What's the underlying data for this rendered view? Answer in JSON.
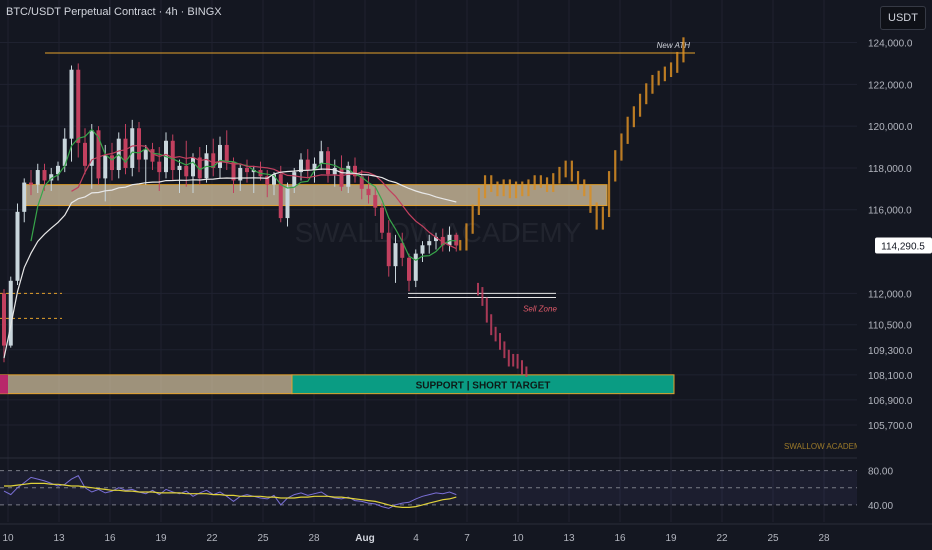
{
  "header": {
    "title": "BTC/USDT Perpetual Contract · 4h · BINGX"
  },
  "currency_button": {
    "label": "USDT"
  },
  "colors": {
    "background": "#141721",
    "bull": "#c9d6dc",
    "bear": "#c2405f",
    "projection": "#d98e23",
    "resistance_zone": "#d9c7a3",
    "support_zone": "#d9c7a3",
    "target_zone": "#0a9c83",
    "ath_line": "#e3a12b",
    "ma_fast": "#37a54a",
    "ma_mid": "#c2405f",
    "ma_slow": "#e8e8e8",
    "rsi_line": "#7a6fd6",
    "rsi_signal": "#e0d23a"
  },
  "chart_data": {
    "type": "candlestick",
    "timeframe": "4h",
    "ylim": [
      104600,
      124600
    ],
    "y_ticks": [
      "124,000.0",
      "122,000.0",
      "120,000.0",
      "118,000.0",
      "116,000.0",
      "112,000.0",
      "110,500.0",
      "109,300.0",
      "108,100.0",
      "106,900.0",
      "105,700.0"
    ],
    "x_ticks": [
      "10",
      "13",
      "16",
      "19",
      "22",
      "25",
      "28",
      "Aug",
      "4",
      "7",
      "10",
      "13",
      "16",
      "19",
      "22",
      "25",
      "28"
    ],
    "current_price": {
      "label": "114,290.5",
      "value": 114290.5
    },
    "annotations": {
      "new_ath": "New ATH",
      "sell_zone": "Sell Zone",
      "support_label": "SUPPORT | SHORT TARGET",
      "watermark": "SWALLOW ACADEMY",
      "brand": "SWALLOW ACADEMY"
    },
    "levels": {
      "ath": 123500,
      "resistance_zone": [
        116200,
        117200
      ],
      "sell_zone_lines": [
        112000,
        111800
      ],
      "support_zone": [
        107200,
        108100
      ],
      "dashed_left": [
        112000,
        110800
      ]
    },
    "ohlc": [
      [
        112000,
        112200,
        108700,
        109500
      ],
      [
        109500,
        112800,
        109400,
        112600
      ],
      [
        112600,
        116300,
        112400,
        115900
      ],
      [
        115900,
        117500,
        115400,
        117300
      ],
      [
        117300,
        117900,
        116700,
        117200
      ],
      [
        117200,
        118200,
        116800,
        117900
      ],
      [
        117900,
        118200,
        116900,
        117400
      ],
      [
        117400,
        118000,
        116900,
        117700
      ],
      [
        117700,
        118300,
        117400,
        118100
      ],
      [
        118100,
        119900,
        117800,
        119400
      ],
      [
        119400,
        122900,
        118300,
        122700
      ],
      [
        122700,
        123000,
        118500,
        119200
      ],
      [
        119200,
        119900,
        117700,
        118100
      ],
      [
        118100,
        120100,
        117000,
        119800
      ],
      [
        119800,
        120000,
        117200,
        117500
      ],
      [
        117500,
        119100,
        116400,
        118600
      ],
      [
        118600,
        119200,
        117400,
        117900
      ],
      [
        117900,
        119700,
        117500,
        119400
      ],
      [
        119400,
        120100,
        117700,
        118000
      ],
      [
        118000,
        120300,
        117600,
        119900
      ],
      [
        119900,
        120200,
        117800,
        118400
      ],
      [
        118400,
        119100,
        117200,
        118900
      ],
      [
        118900,
        119200,
        117900,
        118300
      ],
      [
        118300,
        119000,
        116900,
        117800
      ],
      [
        117800,
        119700,
        117500,
        119300
      ],
      [
        119300,
        119600,
        117400,
        117900
      ],
      [
        117900,
        118400,
        116800,
        118100
      ],
      [
        118100,
        119300,
        117100,
        117600
      ],
      [
        117600,
        118700,
        116800,
        118500
      ],
      [
        118500,
        119000,
        117200,
        117500
      ],
      [
        117500,
        119100,
        117300,
        118700
      ],
      [
        118700,
        119400,
        117600,
        118000
      ],
      [
        118000,
        119500,
        117500,
        119100
      ],
      [
        119100,
        119800,
        117900,
        118300
      ],
      [
        118300,
        118500,
        116800,
        117400
      ],
      [
        117400,
        118200,
        116900,
        118000
      ],
      [
        118000,
        118400,
        117300,
        117800
      ],
      [
        117800,
        118100,
        116800,
        117900
      ],
      [
        117900,
        118300,
        117400,
        117600
      ],
      [
        117600,
        117900,
        116600,
        117200
      ],
      [
        117200,
        117800,
        116700,
        117700
      ],
      [
        117700,
        118100,
        115400,
        115600
      ],
      [
        115600,
        117300,
        115200,
        117100
      ],
      [
        117100,
        118000,
        116800,
        117800
      ],
      [
        117800,
        118700,
        117400,
        118400
      ],
      [
        118400,
        118900,
        117500,
        117900
      ],
      [
        117900,
        118500,
        117300,
        118200
      ],
      [
        118200,
        119300,
        117900,
        118800
      ],
      [
        118800,
        119000,
        117300,
        117700
      ],
      [
        117700,
        118400,
        117100,
        118000
      ],
      [
        118000,
        118600,
        116900,
        117100
      ],
      [
        117100,
        118300,
        116800,
        118100
      ],
      [
        118100,
        118500,
        117300,
        117600
      ],
      [
        117600,
        117900,
        116500,
        117000
      ],
      [
        117000,
        117600,
        116300,
        116700
      ],
      [
        116700,
        117100,
        115700,
        116100
      ],
      [
        116100,
        116300,
        114600,
        114900
      ],
      [
        114900,
        115500,
        112800,
        113300
      ],
      [
        113300,
        114800,
        112500,
        114400
      ],
      [
        114400,
        114900,
        113300,
        113700
      ],
      [
        113700,
        113900,
        112100,
        112600
      ],
      [
        112600,
        114100,
        112300,
        113900
      ],
      [
        113900,
        114500,
        113500,
        114300
      ],
      [
        114300,
        114800,
        113900,
        114500
      ],
      [
        114500,
        114900,
        114100,
        114700
      ],
      [
        114700,
        115100,
        114000,
        114300
      ],
      [
        114300,
        115200,
        114000,
        114800
      ],
      [
        114800,
        114900,
        114000,
        114290.5
      ]
    ],
    "projection_path": [
      114300,
      115100,
      116000,
      116800,
      117400,
      117100,
      116900,
      117200,
      116800,
      117100,
      116900,
      117200,
      117400,
      117300,
      117100,
      117500,
      117800,
      118100,
      117600,
      117200,
      116900,
      116100,
      115300,
      115900,
      117600,
      118600,
      119400,
      120200,
      120700,
      121300,
      121800,
      122200,
      122400,
      122600,
      122800,
      123300,
      124000
    ],
    "short_path": [
      112100,
      111600,
      110800,
      110200,
      109900,
      109500,
      109100,
      108700,
      108900,
      108600,
      108300,
      108200
    ],
    "rsi": {
      "ylim": [
        20,
        90
      ],
      "y_ticks": [
        "80.00",
        "40.00"
      ],
      "values": [
        56,
        52,
        60,
        66,
        72,
        70,
        68,
        65,
        62,
        64,
        70,
        74,
        60,
        55,
        58,
        54,
        56,
        60,
        57,
        58,
        55,
        53,
        57,
        52,
        58,
        55,
        53,
        56,
        50,
        54,
        57,
        52,
        55,
        50,
        44,
        50,
        52,
        50,
        48,
        47,
        51,
        40,
        48,
        52,
        54,
        51,
        53,
        55,
        50,
        48,
        47,
        49,
        45,
        44,
        42,
        41,
        38,
        36,
        40,
        42,
        43,
        47,
        50,
        52,
        54,
        53,
        55,
        52
      ],
      "signal": [
        62,
        62,
        63,
        64,
        65,
        65,
        65,
        64,
        64,
        63,
        62,
        62,
        61,
        60,
        59,
        58,
        57,
        57,
        56,
        56,
        55,
        55,
        55,
        54,
        54,
        54,
        54,
        53,
        53,
        53,
        53,
        52,
        52,
        51,
        51,
        50,
        50,
        50,
        50,
        49,
        49,
        48,
        48,
        48,
        49,
        49,
        50,
        50,
        50,
        49,
        49,
        48,
        47,
        46,
        45,
        44,
        42,
        40,
        38,
        37,
        37,
        38,
        40,
        42,
        44,
        46,
        47,
        49
      ]
    }
  }
}
